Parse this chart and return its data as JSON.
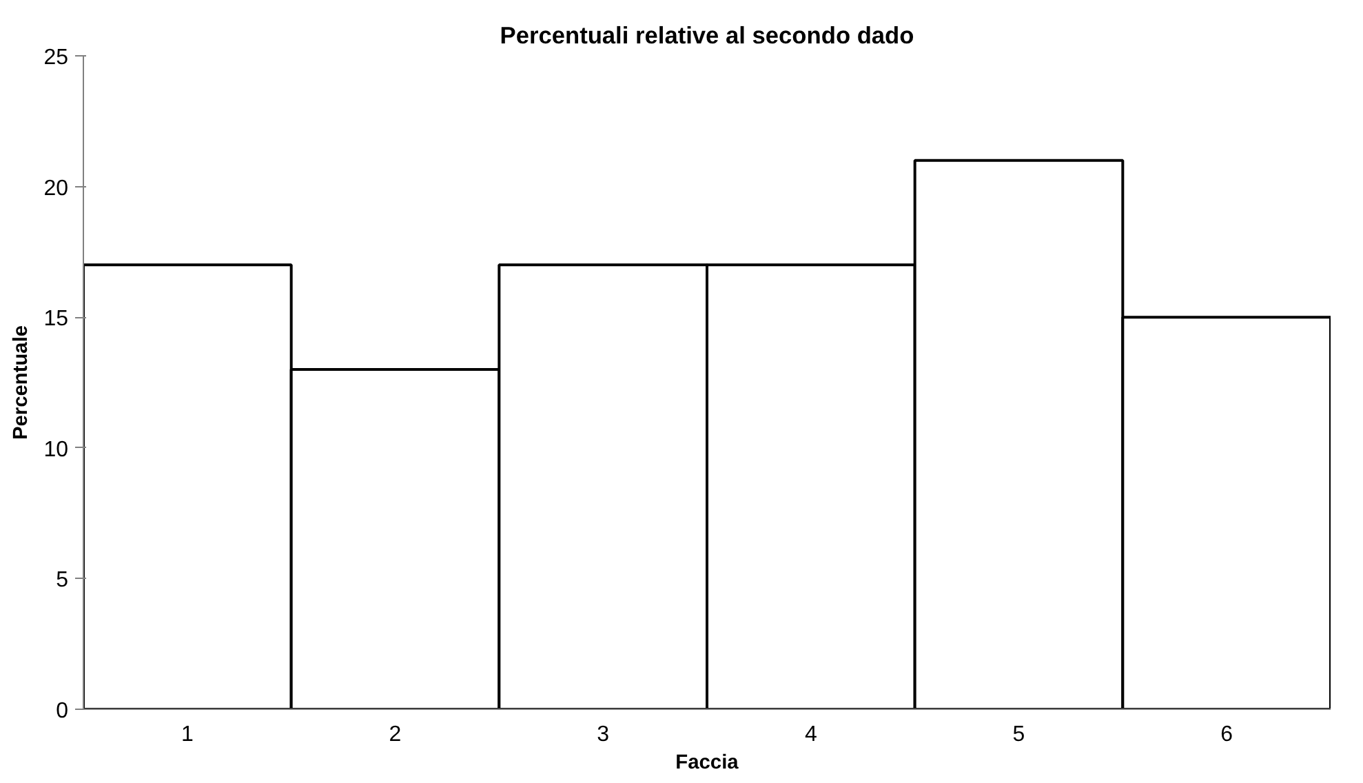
{
  "chart_data": {
    "type": "bar",
    "title": "Percentuali relative al secondo dado",
    "xlabel": "Faccia",
    "ylabel": "Percentuale",
    "categories": [
      "1",
      "2",
      "3",
      "4",
      "5",
      "6"
    ],
    "values": [
      17,
      13,
      17,
      17,
      21,
      15
    ],
    "color": "#ffffff",
    "ylim": [
      0,
      25
    ],
    "yticks": [
      0,
      5,
      10,
      15,
      20,
      25
    ],
    "grid": false
  }
}
